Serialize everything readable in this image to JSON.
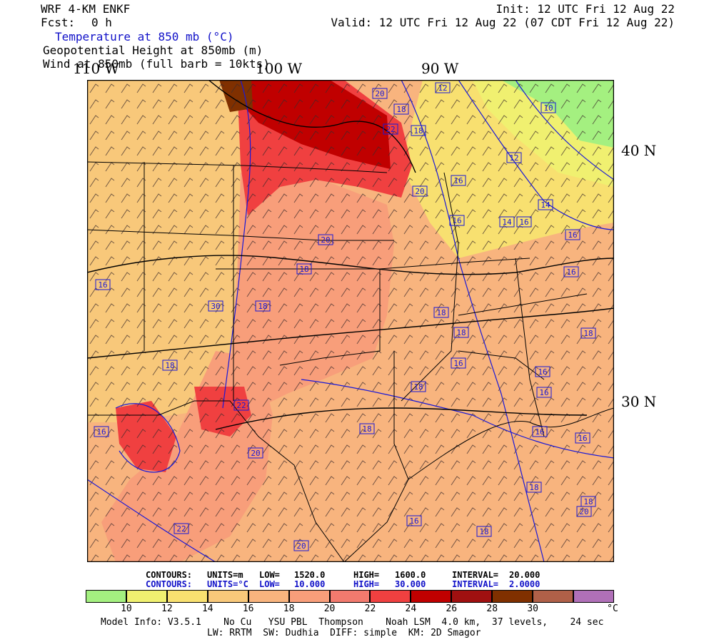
{
  "header": {
    "model": "WRF 4-KM ENKF",
    "forecast_label": "Fcst:",
    "forecast_hours": "0 h",
    "init": "Init: 12 UTC Fri 12 Aug 22",
    "valid": "Valid: 12 UTC Fri 12 Aug 22 (07 CDT Fri 12 Aug 22)",
    "field1": "Temperature at 850 mb (°C)",
    "field2": "Geopotential Height at 850mb (m)",
    "field3": "Wind at 850mb (full barb = 10kts)"
  },
  "axes": {
    "lon_110": "110 W",
    "lon_100": "100 W",
    "lon_90": "90 W",
    "lat_40": "40 N",
    "lat_30": "30 N"
  },
  "contour_labels": [
    "20",
    "18",
    "12",
    "10",
    "22",
    "18",
    "16",
    "16",
    "12",
    "20",
    "16",
    "14",
    "16",
    "14",
    "16",
    "20",
    "18",
    "16",
    "18",
    "18",
    "30",
    "18",
    "16",
    "18",
    "16",
    "16",
    "18",
    "16",
    "16",
    "22",
    "18",
    "16",
    "18",
    "20",
    "18",
    "18",
    "20",
    "16",
    "18",
    "22",
    "20"
  ],
  "contours_height": {
    "label": "CONTOURS:",
    "units": "UNITS=m",
    "low_label": "LOW=",
    "low": "1520.0",
    "high_label": "HIGH=",
    "high": "1600.0",
    "interval_label": "INTERVAL=",
    "interval": "20.000"
  },
  "contours_temp": {
    "label": "CONTOURS:",
    "units": "UNITS=°C",
    "low_label": "LOW=",
    "low": "10.000",
    "high_label": "HIGH=",
    "high": "30.000",
    "interval_label": "INTERVAL=",
    "interval": "2.0000"
  },
  "colorbar": {
    "colors": [
      "#a4f080",
      "#f0f070",
      "#f8e070",
      "#f8c87a",
      "#f8b47e",
      "#f89e7a",
      "#f27a6e",
      "#f04040",
      "#c00000",
      "#a01010",
      "#803000",
      "#b06048",
      "#b070b8"
    ],
    "labels": [
      "10",
      "12",
      "14",
      "16",
      "18",
      "20",
      "22",
      "24",
      "26",
      "28",
      "30"
    ],
    "unit": "°C"
  },
  "footer": {
    "line1": "Model Info: V3.5.1    No Cu   YSU PBL  Thompson    Noah LSM  4.0 km,  37 levels,    24 sec",
    "line2": "LW: RRTM  SW: Dudhia  DIFF: simple  KM: 2D Smagor"
  }
}
